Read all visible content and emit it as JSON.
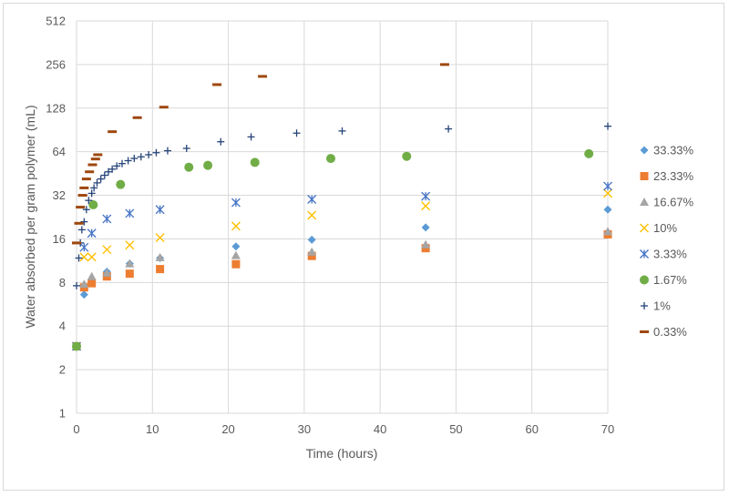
{
  "chart_data": {
    "type": "scatter",
    "title": "",
    "xlabel": "Time (hours)",
    "ylabel": "Water absorbed per gram polymer (mL)",
    "xlim": [
      0,
      70
    ],
    "ylim": [
      1,
      512
    ],
    "yscale": "log2",
    "x_ticks": [
      "0",
      "10",
      "20",
      "30",
      "40",
      "50",
      "60",
      "70"
    ],
    "y_ticks": [
      "1",
      "2",
      "4",
      "8",
      "16",
      "32",
      "64",
      "128",
      "256",
      "512"
    ],
    "grid": "horizontal and vertical major gridlines",
    "legend_position": "right",
    "series": [
      {
        "name": "33.33%",
        "marker": "diamond",
        "color": "#5b9bd5",
        "points": [
          [
            0,
            2.9
          ],
          [
            1,
            6.6
          ],
          [
            2,
            8.2
          ],
          [
            4,
            9.5
          ],
          [
            7,
            10.8
          ],
          [
            11,
            11.8
          ],
          [
            21,
            14.2
          ],
          [
            31,
            15.8
          ],
          [
            46,
            19.2
          ],
          [
            70,
            25.5
          ]
        ]
      },
      {
        "name": "23.33%",
        "marker": "square",
        "color": "#ed7d31",
        "points": [
          [
            0,
            2.9
          ],
          [
            1,
            7.4
          ],
          [
            2,
            7.9
          ],
          [
            4,
            8.8
          ],
          [
            7,
            9.2
          ],
          [
            11,
            9.9
          ],
          [
            21,
            10.7
          ],
          [
            31,
            12.2
          ],
          [
            46,
            13.8
          ],
          [
            70,
            17.2
          ]
        ]
      },
      {
        "name": "16.67%",
        "marker": "triangle",
        "color": "#a5a5a5",
        "points": [
          [
            0,
            2.9
          ],
          [
            1,
            7.8
          ],
          [
            2,
            8.8
          ],
          [
            4,
            9.3
          ],
          [
            7,
            10.8
          ],
          [
            11,
            11.9
          ],
          [
            21,
            12.3
          ],
          [
            31,
            13
          ],
          [
            46,
            14.6
          ],
          [
            70,
            18
          ]
        ]
      },
      {
        "name": "10%",
        "marker": "x",
        "color": "#ffc000",
        "points": [
          [
            0,
            2.9
          ],
          [
            1,
            12
          ],
          [
            2,
            12
          ],
          [
            4,
            13.5
          ],
          [
            7,
            14.5
          ],
          [
            11,
            16.3
          ],
          [
            21,
            19.6
          ],
          [
            31,
            23.3
          ],
          [
            46,
            27
          ],
          [
            70,
            33
          ]
        ]
      },
      {
        "name": "3.33%",
        "marker": "asterisk",
        "color": "#4472c4",
        "points": [
          [
            0,
            2.9
          ],
          [
            1,
            14
          ],
          [
            2,
            17.5
          ],
          [
            4,
            22
          ],
          [
            7,
            24
          ],
          [
            11,
            25.5
          ],
          [
            21,
            28.5
          ],
          [
            31,
            30
          ],
          [
            46,
            31.5
          ],
          [
            70,
            37
          ]
        ]
      },
      {
        "name": "1.67%",
        "marker": "circle",
        "color": "#70ad47",
        "points": [
          [
            0,
            2.9
          ],
          [
            2.2,
            27.5
          ],
          [
            5.8,
            38
          ],
          [
            14.8,
            50
          ],
          [
            17.3,
            51.5
          ],
          [
            23.5,
            54
          ],
          [
            33.5,
            57.5
          ],
          [
            43.5,
            59.5
          ],
          [
            67.5,
            62
          ]
        ]
      },
      {
        "name": "1%",
        "marker": "plus",
        "color": "#264478",
        "points": [
          [
            0,
            7.6
          ],
          [
            0.3,
            11.8
          ],
          [
            0.5,
            15
          ],
          [
            0.7,
            18.5
          ],
          [
            1,
            21
          ],
          [
            1.3,
            25.5
          ],
          [
            1.6,
            29.5
          ],
          [
            2,
            33
          ],
          [
            2.3,
            36
          ],
          [
            2.7,
            39
          ],
          [
            3.2,
            41.5
          ],
          [
            3.7,
            44
          ],
          [
            4.2,
            46.5
          ],
          [
            4.7,
            48.5
          ],
          [
            5.3,
            51
          ],
          [
            6,
            53
          ],
          [
            6.8,
            55.5
          ],
          [
            7.6,
            57.5
          ],
          [
            8.5,
            59
          ],
          [
            9.5,
            61
          ],
          [
            10.5,
            63
          ],
          [
            12,
            65
          ],
          [
            14.5,
            67.5
          ],
          [
            19,
            75
          ],
          [
            23,
            81
          ],
          [
            29,
            86
          ],
          [
            35,
            89
          ],
          [
            49,
            92
          ],
          [
            70,
            96
          ]
        ]
      },
      {
        "name": "0.33%",
        "marker": "dash",
        "color": "#9e480e",
        "points": [
          [
            0,
            15
          ],
          [
            0.3,
            20.5
          ],
          [
            0.5,
            26.5
          ],
          [
            0.8,
            32
          ],
          [
            1,
            36
          ],
          [
            1.3,
            41.5
          ],
          [
            1.7,
            46.5
          ],
          [
            2.1,
            52
          ],
          [
            2.5,
            57
          ],
          [
            2.8,
            61
          ],
          [
            4.7,
            88
          ],
          [
            8,
            110
          ],
          [
            11.5,
            130
          ],
          [
            18.5,
            186
          ],
          [
            24.5,
            212
          ],
          [
            48.5,
            256
          ]
        ]
      }
    ]
  }
}
